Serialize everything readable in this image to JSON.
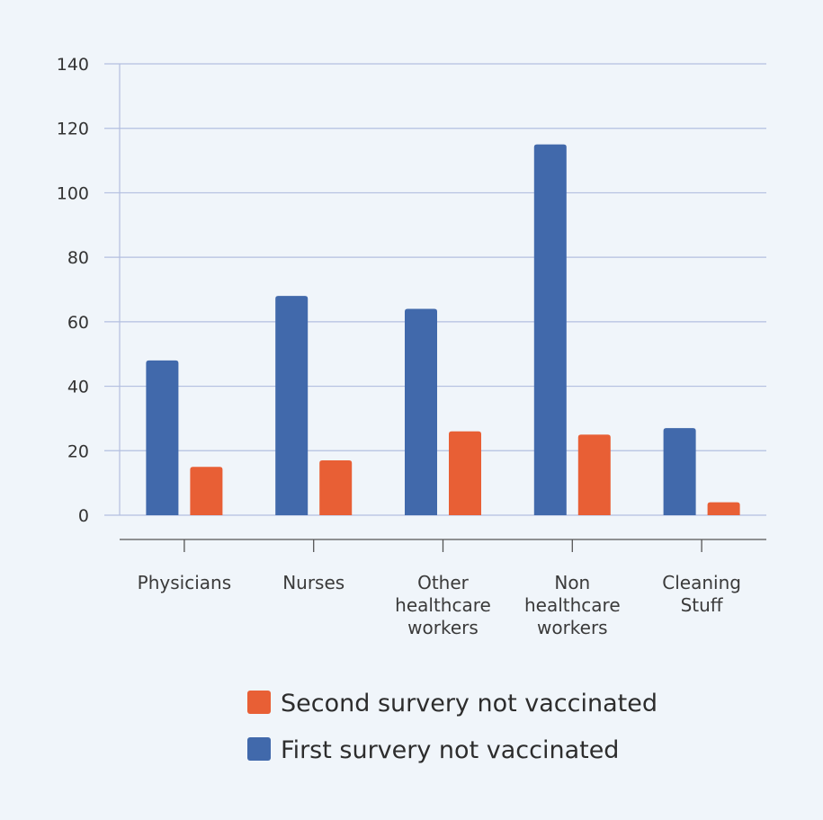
{
  "chart_data": {
    "type": "bar",
    "categories": [
      [
        "Physicians"
      ],
      [
        "Nurses"
      ],
      [
        "Other",
        "healthcare",
        "workers"
      ],
      [
        "Non",
        "healthcare",
        "workers"
      ],
      [
        "Cleaning",
        "Stuff"
      ]
    ],
    "series": [
      {
        "name": "First survery not vaccinated",
        "color": "#4169ab",
        "values": [
          48,
          68,
          64,
          115,
          27
        ]
      },
      {
        "name": "Second survery not vaccinated",
        "color": "#e85f35",
        "values": [
          15,
          17,
          26,
          25,
          4
        ]
      }
    ],
    "legend_order": [
      1,
      0
    ],
    "ylim": [
      0,
      140
    ],
    "yticks": [
      0,
      20,
      40,
      60,
      80,
      100,
      120,
      140
    ],
    "grid": true,
    "grid_color": "#b3bfe0",
    "legend_position": "bottom"
  }
}
